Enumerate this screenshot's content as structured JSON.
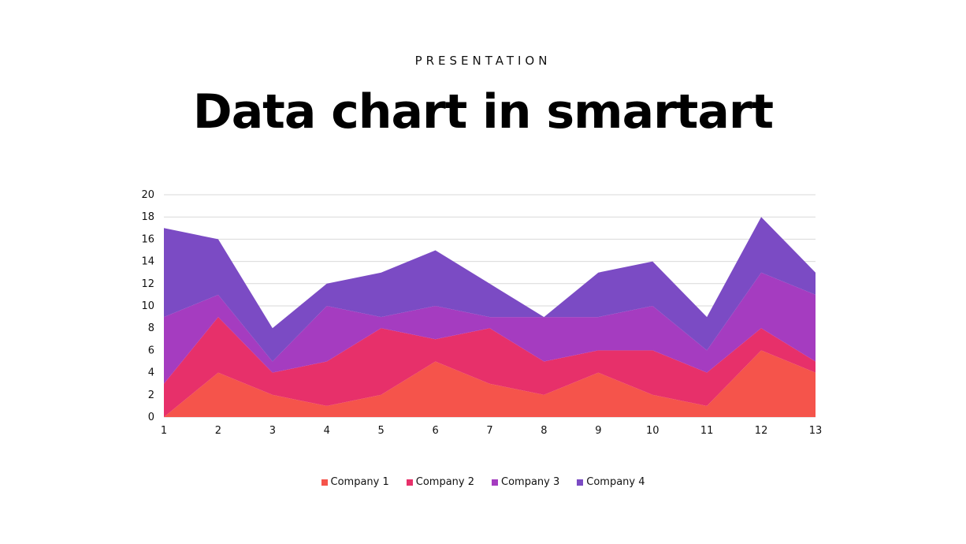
{
  "header": {
    "kicker": "PRESENTATION",
    "title": "Data chart in smartart"
  },
  "chart_data": {
    "type": "area",
    "stacked": true,
    "x": [
      1,
      2,
      3,
      4,
      5,
      6,
      7,
      8,
      9,
      10,
      11,
      12,
      13
    ],
    "ylim": [
      0,
      20
    ],
    "yticks": [
      0,
      2,
      4,
      6,
      8,
      10,
      12,
      14,
      16,
      18,
      20
    ],
    "grid": true,
    "legend_position": "bottom",
    "xlabel": "",
    "ylabel": "",
    "series": [
      {
        "name": "Company 1",
        "color": "#f5544b",
        "values": [
          0,
          4,
          2,
          1,
          2,
          5,
          3,
          2,
          4,
          2,
          1,
          6,
          4
        ]
      },
      {
        "name": "Company 2",
        "color": "#e7306a",
        "values": [
          3,
          5,
          2,
          4,
          6,
          2,
          5,
          3,
          2,
          4,
          3,
          2,
          1
        ]
      },
      {
        "name": "Company 3",
        "color": "#a53cc0",
        "values": [
          6,
          2,
          1,
          5,
          1,
          3,
          1,
          4,
          3,
          4,
          2,
          5,
          6
        ]
      },
      {
        "name": "Company 4",
        "color": "#7b4bc4",
        "values": [
          8,
          5,
          3,
          2,
          4,
          5,
          3,
          0,
          4,
          4,
          3,
          5,
          2
        ]
      }
    ]
  }
}
